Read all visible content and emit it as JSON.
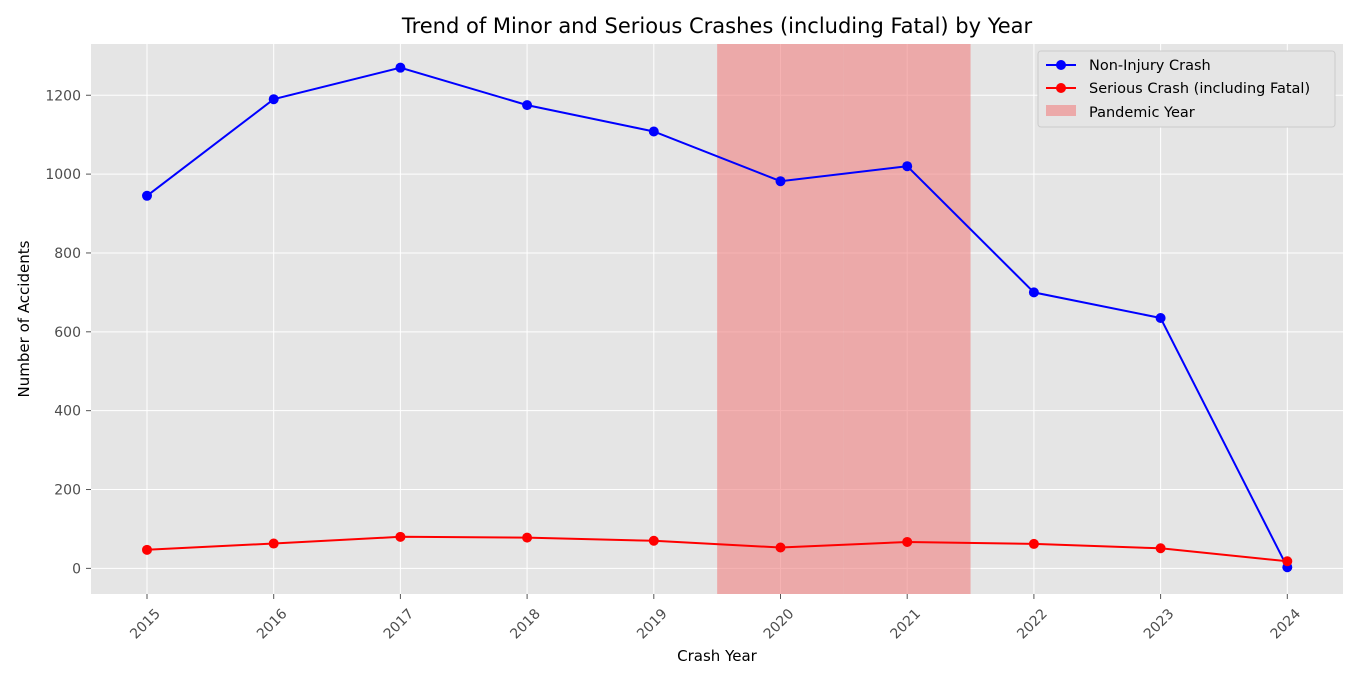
{
  "chart_data": {
    "type": "line",
    "title": "Trend of Minor and Serious Crashes (including Fatal) by Year",
    "xlabel": "Crash Year",
    "ylabel": "Number of Accidents",
    "categories": [
      "2015",
      "2016",
      "2017",
      "2018",
      "2019",
      "2020",
      "2021",
      "2022",
      "2023",
      "2024"
    ],
    "y_ticks": [
      0,
      200,
      400,
      600,
      800,
      1000,
      1200
    ],
    "ylim": [
      -65,
      1330
    ],
    "grid": true,
    "legend_position": "top-right",
    "background_color": "#e5e5e5",
    "series": [
      {
        "name": "Non-Injury Crash",
        "color": "#0000ff",
        "values": [
          945,
          1190,
          1270,
          1175,
          1108,
          982,
          1020,
          700,
          635,
          3
        ]
      },
      {
        "name": "Serious Crash (including Fatal)",
        "color": "#ff0000",
        "values": [
          47,
          63,
          80,
          78,
          70,
          53,
          67,
          62,
          51,
          18
        ]
      }
    ],
    "shaded_regions": [
      {
        "name": "Pandemic Year",
        "from": "2020",
        "to": "2021",
        "color": "#f08080",
        "opacity": 0.6
      }
    ]
  }
}
